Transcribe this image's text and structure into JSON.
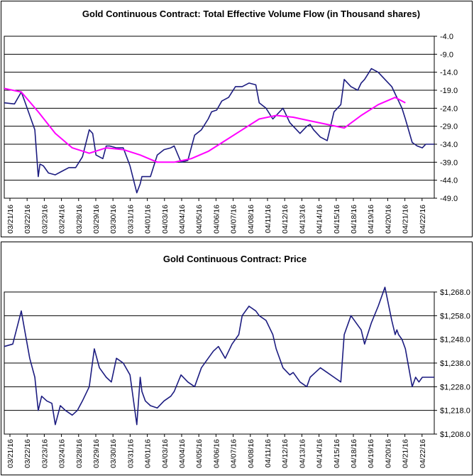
{
  "chart_data": [
    {
      "type": "line",
      "title": "Gold Continuous Contract: Total Effective Volume Flow (in Thousand shares)",
      "xlabel": "",
      "ylabel": "",
      "ylim": [
        -49.0,
        -4.0
      ],
      "y_ticks": [
        "-4.0",
        "-9.0",
        "-14.0",
        "-19.0",
        "-24.0",
        "-29.0",
        "-34.0",
        "-39.0",
        "-44.0",
        "-49.0"
      ],
      "categories": [
        "03/21/16",
        "03/22/16",
        "03/23/16",
        "03/24/16",
        "03/28/16",
        "03/29/16",
        "03/30/16",
        "03/31/16",
        "04/01/16",
        "04/03/16",
        "04/04/16",
        "04/05/16",
        "04/06/16",
        "04/07/16",
        "04/08/16",
        "04/11/16",
        "04/12/16",
        "04/13/16",
        "04/14/16",
        "04/15/16",
        "04/18/16",
        "04/19/16",
        "04/20/16",
        "04/21/16",
        "04/22/16"
      ],
      "grid": true,
      "series": [
        {
          "color": "#1c1c80",
          "x": [
            0.0,
            0.6,
            1.0,
            1.2,
            1.5,
            1.8,
            2.0,
            2.1,
            2.3,
            2.6,
            3.0,
            3.4,
            3.8,
            4.2,
            4.6,
            5.0,
            5.2,
            5.4,
            5.8,
            6.0,
            6.2,
            6.6,
            7.0,
            7.4,
            7.8,
            8.0,
            8.1,
            8.3,
            8.6,
            9.0,
            9.4,
            9.8,
            10.0,
            10.4,
            10.8,
            11.2,
            11.6,
            12.0,
            12.2,
            12.5,
            12.8,
            13.2,
            13.6,
            14.0,
            14.4,
            14.8,
            15.0,
            15.4,
            15.8,
            16.0,
            16.4,
            16.8,
            17.0,
            17.4,
            17.8,
            18.0,
            18.2,
            18.6,
            19.0,
            19.4,
            19.8,
            20.0,
            20.4,
            20.8,
            21.0,
            21.2,
            21.6,
            22.0,
            22.4,
            22.8,
            23.0,
            23.1,
            23.2,
            23.4,
            23.6,
            24.0,
            24.3,
            24.6,
            24.8,
            25.0,
            25.2,
            25.3
          ],
          "values": [
            -22.5,
            -22.8,
            -19.5,
            -22.0,
            -26.0,
            -30.0,
            -43.0,
            -39.5,
            -40.0,
            -42.0,
            -42.5,
            -41.5,
            -40.5,
            -40.5,
            -37.5,
            -30.0,
            -31.0,
            -37.0,
            -38.0,
            -34.5,
            -34.5,
            -35.0,
            -35.0,
            -40.0,
            -47.5,
            -45.0,
            -43.0,
            -43.0,
            -43.0,
            -37.0,
            -35.5,
            -35.0,
            -34.5,
            -39.0,
            -38.5,
            -31.5,
            -30.0,
            -27.0,
            -25.0,
            -24.5,
            -22.0,
            -21.0,
            -18.0,
            -18.0,
            -17.0,
            -17.5,
            -22.5,
            -24.0,
            -27.0,
            -26.0,
            -24.0,
            -28.0,
            -29.0,
            -31.0,
            -29.0,
            -28.5,
            -30.0,
            -32.0,
            -33.0,
            -25.0,
            -23.0,
            -16.0,
            -18.0,
            -19.0,
            -17.0,
            -16.0,
            -13.0,
            -14.0,
            -16.0,
            -18.0,
            -20.0,
            -21.0,
            -22.0,
            -24.0,
            -27.0,
            -33.5,
            -34.5,
            -35.0,
            -34.0,
            -34.0,
            -34.0,
            -34.0
          ]
        },
        {
          "color": "#ff00ff",
          "x": [
            0.0,
            1.0,
            2.0,
            3.0,
            4.0,
            5.0,
            6.0,
            7.0,
            8.0,
            9.0,
            10.0,
            11.0,
            12.0,
            13.0,
            14.0,
            15.0,
            16.0,
            17.0,
            18.0,
            19.0,
            20.0,
            21.0,
            22.0,
            23.0,
            23.6
          ],
          "values": [
            -18.5,
            -19.5,
            -25.0,
            -31.0,
            -35.0,
            -36.5,
            -35.0,
            -35.5,
            -37.0,
            -39.0,
            -39.0,
            -38.0,
            -36.0,
            -33.0,
            -30.0,
            -27.0,
            -26.0,
            -26.5,
            -27.5,
            -28.5,
            -29.5,
            -26.0,
            -23.0,
            -21.0,
            -22.5
          ]
        }
      ]
    },
    {
      "type": "line",
      "title": "Gold Continuous Contract: Price",
      "xlabel": "",
      "ylabel": "",
      "ylim": [
        1208,
        1268
      ],
      "y_ticks": [
        "$1,268.0",
        "$1,258.0",
        "$1,248.0",
        "$1,238.0",
        "$1,228.0",
        "$1,218.0",
        "$1,208.0"
      ],
      "categories": [
        "03/21/16",
        "03/22/16",
        "03/23/16",
        "03/24/16",
        "03/28/16",
        "03/29/16",
        "03/30/16",
        "03/31/16",
        "04/01/16",
        "04/03/16",
        "04/04/16",
        "04/05/16",
        "04/06/16",
        "04/07/16",
        "04/08/16",
        "04/11/16",
        "04/12/16",
        "04/13/16",
        "04/14/16",
        "04/15/16",
        "04/18/16",
        "04/19/16",
        "04/20/16",
        "04/21/16",
        "04/22/16"
      ],
      "grid": true,
      "series": [
        {
          "color": "#1c1c80",
          "x": [
            0.0,
            0.5,
            1.0,
            1.2,
            1.5,
            1.8,
            2.0,
            2.2,
            2.5,
            2.8,
            3.0,
            3.3,
            3.6,
            4.0,
            4.3,
            4.6,
            5.0,
            5.3,
            5.6,
            6.0,
            6.3,
            6.6,
            7.0,
            7.4,
            7.8,
            8.0,
            8.1,
            8.3,
            8.6,
            9.0,
            9.4,
            9.8,
            10.0,
            10.4,
            10.8,
            11.2,
            11.6,
            12.0,
            12.3,
            12.6,
            13.0,
            13.4,
            13.8,
            14.0,
            14.4,
            14.8,
            15.0,
            15.4,
            15.8,
            16.0,
            16.4,
            16.8,
            17.0,
            17.4,
            17.8,
            18.0,
            18.3,
            18.6,
            19.0,
            19.4,
            19.8,
            20.0,
            20.4,
            20.8,
            21.0,
            21.2,
            21.6,
            22.0,
            22.4,
            22.8,
            23.0,
            23.1,
            23.2,
            23.4,
            23.6,
            24.0,
            24.2,
            24.4,
            24.6,
            24.8,
            25.0,
            25.3
          ],
          "values": [
            1245,
            1246,
            1260,
            1252,
            1240,
            1232,
            1218,
            1224,
            1222,
            1221,
            1212,
            1220,
            1218,
            1216,
            1218,
            1222,
            1228,
            1244,
            1236,
            1232,
            1230,
            1240,
            1238,
            1233,
            1212,
            1232,
            1226,
            1222,
            1220,
            1219,
            1222,
            1224,
            1226,
            1233,
            1230,
            1228,
            1236,
            1240,
            1243,
            1245,
            1240,
            1246,
            1250,
            1258,
            1262,
            1260,
            1258,
            1256,
            1250,
            1244,
            1236,
            1233,
            1234,
            1230,
            1228,
            1232,
            1234,
            1236,
            1234,
            1232,
            1230,
            1250,
            1258,
            1254,
            1252,
            1246,
            1255,
            1262,
            1270,
            1256,
            1250,
            1252,
            1250,
            1248,
            1244,
            1228,
            1232,
            1230,
            1232,
            1232,
            1232,
            1232
          ]
        }
      ]
    }
  ]
}
